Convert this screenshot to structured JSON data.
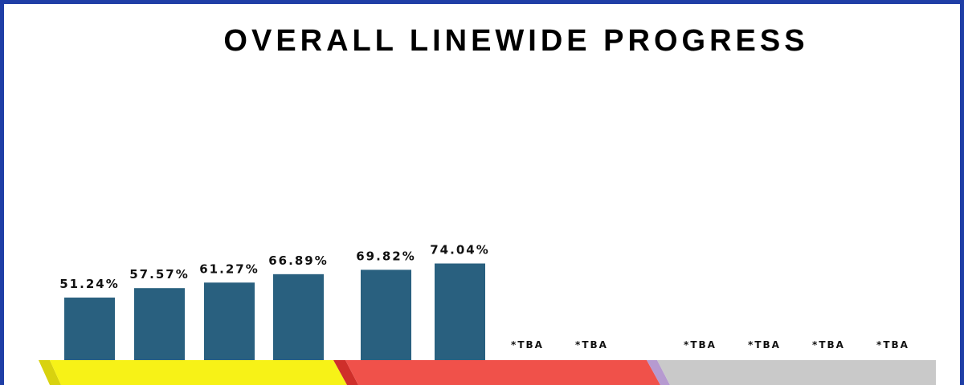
{
  "title": "OVERALL LINEWIDE PROGRESS",
  "colors": {
    "frame": "#1f3ea6",
    "bar": "#29607f",
    "band_1": "#f7f217",
    "band_1_edge": "#d8d20f",
    "band_2": "#f0514a",
    "band_2_edge": "#cf2f2a",
    "band_3": "#c9c9c9",
    "band_3_edge": "#b69ad0"
  },
  "chart_data": {
    "type": "bar",
    "title": "OVERALL LINEWIDE PROGRESS",
    "xlabel": "",
    "ylabel": "",
    "ylim": [
      0,
      100
    ],
    "grid": false,
    "legend": "none",
    "values": [
      51.24,
      57.57,
      61.27,
      66.89,
      69.82,
      74.04,
      null,
      null,
      null,
      null,
      null,
      null
    ],
    "data_labels": [
      "51.24%",
      "57.57%",
      "61.27%",
      "66.89%",
      "69.82%",
      "74.04%",
      "*TBA",
      "*TBA",
      "*TBA",
      "*TBA",
      "*TBA",
      "*TBA"
    ]
  }
}
